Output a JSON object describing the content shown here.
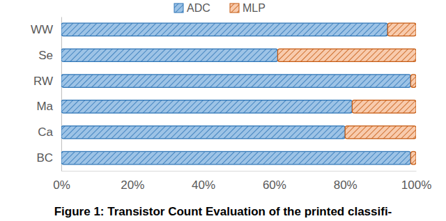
{
  "chart_data": {
    "type": "bar",
    "orientation": "horizontal",
    "stacked": true,
    "legend": "top",
    "title": "Figure 1: Transistor Count Evaluation of the printed classifi-",
    "categories": [
      "WW",
      "Se",
      "RW",
      "Ma",
      "Ca",
      "BC"
    ],
    "series": [
      {
        "name": "ADC",
        "color": "#9dc3e6",
        "values": [
          92,
          61,
          98.5,
          82,
          80,
          98.5
        ]
      },
      {
        "name": "MLP",
        "color": "#f8cbad",
        "values": [
          8,
          39,
          1.5,
          18,
          20,
          1.5
        ]
      }
    ],
    "xlim": [
      0,
      100
    ],
    "xticks": [
      {
        "value": 0,
        "label": "0%"
      },
      {
        "value": 20,
        "label": "20%"
      },
      {
        "value": 40,
        "label": "40%"
      },
      {
        "value": 60,
        "label": "60%"
      },
      {
        "value": 80,
        "label": "80%"
      },
      {
        "value": 100,
        "label": "100%"
      }
    ],
    "grid": false
  }
}
